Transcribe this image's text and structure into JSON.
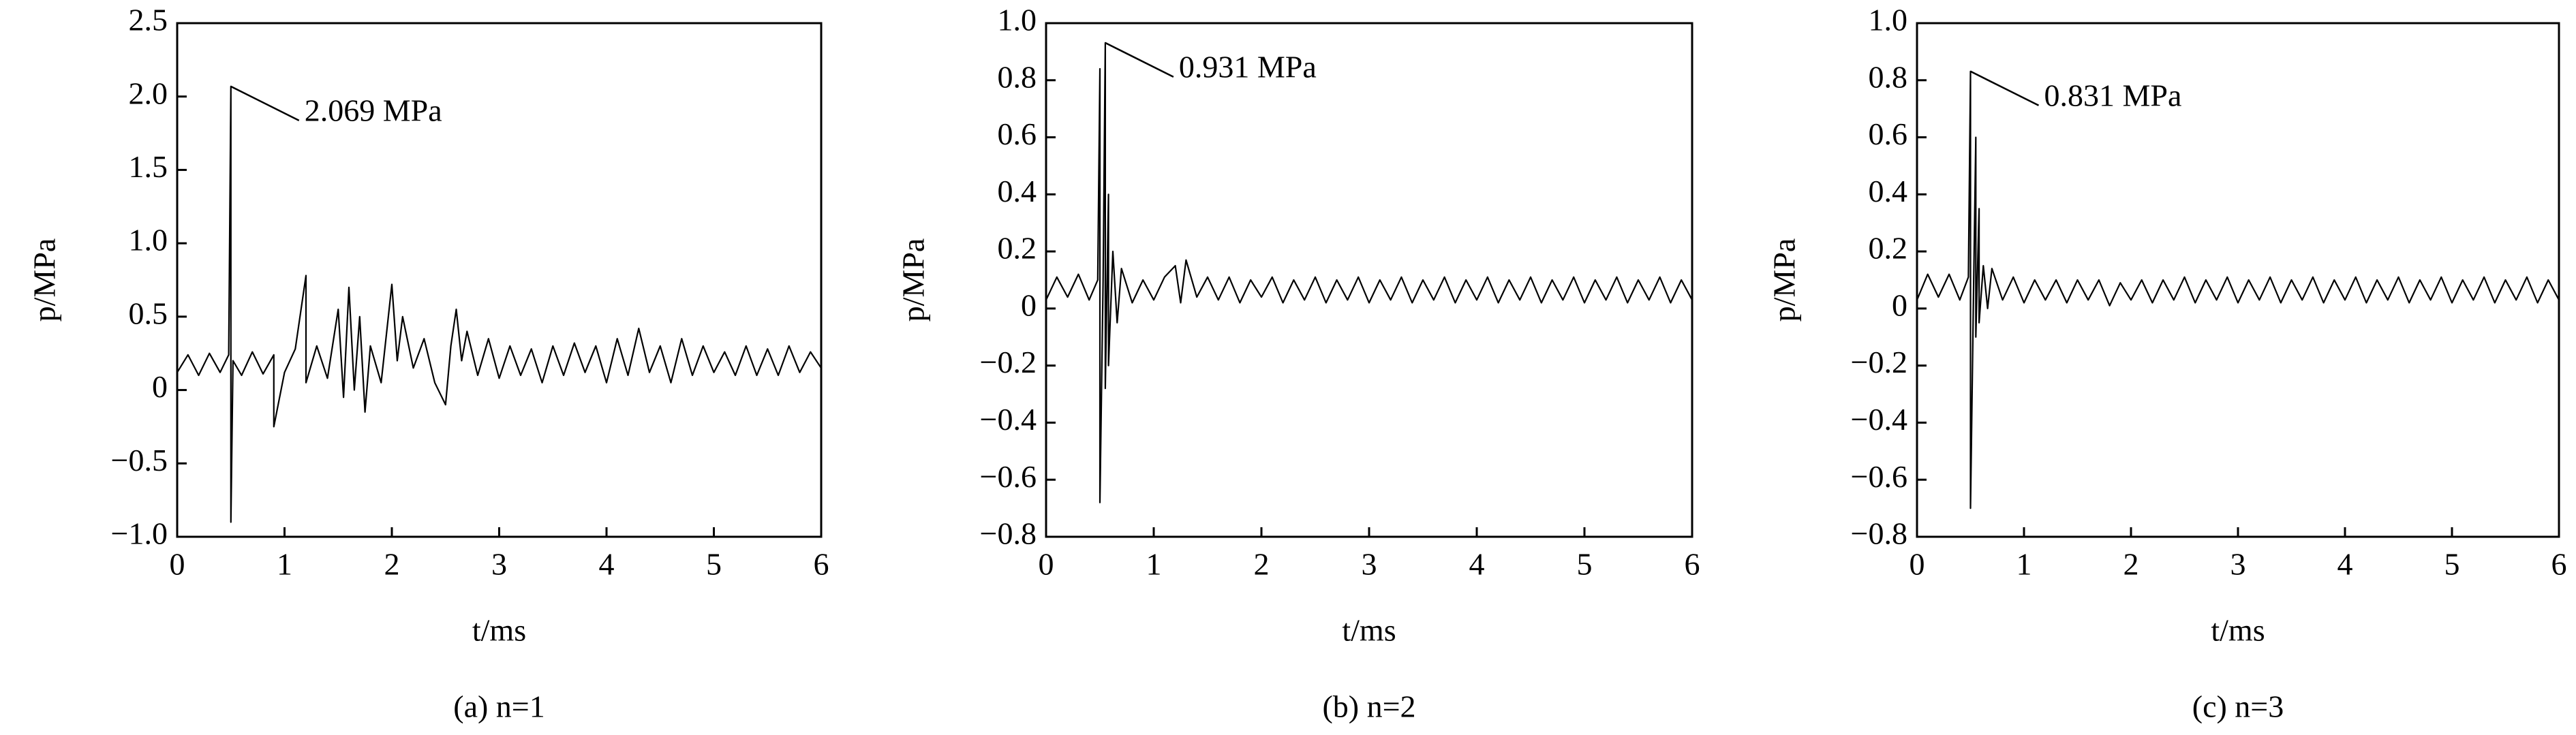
{
  "chart_data": [
    {
      "type": "line",
      "xlabel": "t/ms",
      "ylabel": "p/MPa",
      "caption": "(a) n=1",
      "color": "#000000",
      "xlim": [
        0,
        6
      ],
      "ylim": [
        -1,
        2.5
      ],
      "xticks": [
        0,
        1,
        2,
        3,
        4,
        5,
        6
      ],
      "yticks": [
        {
          "value": -1,
          "label": "−1.0"
        },
        {
          "value": -0.5,
          "label": "−0.5"
        },
        0,
        0.5,
        {
          "value": 1,
          "label": "1.0"
        },
        1.5,
        {
          "value": 2,
          "label": "2.0"
        },
        2.5
      ],
      "annotation": {
        "text": "2.069 MPa",
        "x": 0.5,
        "y": 2.069
      },
      "x": [
        0,
        0.1,
        0.2,
        0.3,
        0.4,
        0.48,
        0.5,
        0.5,
        0.52,
        0.6,
        0.7,
        0.8,
        0.9,
        0.9,
        1.0,
        1.1,
        1.2,
        1.2,
        1.3,
        1.4,
        1.5,
        1.55,
        1.6,
        1.65,
        1.7,
        1.75,
        1.8,
        1.9,
        2.0,
        2.05,
        2.1,
        2.2,
        2.3,
        2.4,
        2.5,
        2.55,
        2.6,
        2.65,
        2.7,
        2.8,
        2.9,
        3.0,
        3.1,
        3.2,
        3.3,
        3.4,
        3.5,
        3.6,
        3.7,
        3.8,
        3.9,
        4.0,
        4.1,
        4.2,
        4.3,
        4.4,
        4.5,
        4.6,
        4.7,
        4.8,
        4.9,
        5.0,
        5.1,
        5.2,
        5.3,
        5.4,
        5.5,
        5.6,
        5.7,
        5.8,
        5.9,
        6.0
      ],
      "values": [
        0.12,
        0.24,
        0.1,
        0.25,
        0.12,
        0.24,
        2.069,
        -0.9,
        0.2,
        0.1,
        0.26,
        0.11,
        0.24,
        -0.25,
        0.12,
        0.28,
        0.78,
        0.05,
        0.3,
        0.08,
        0.55,
        -0.05,
        0.7,
        0.0,
        0.5,
        -0.15,
        0.3,
        0.05,
        0.72,
        0.2,
        0.5,
        0.15,
        0.35,
        0.05,
        -0.1,
        0.3,
        0.55,
        0.2,
        0.4,
        0.1,
        0.35,
        0.08,
        0.3,
        0.1,
        0.28,
        0.05,
        0.3,
        0.1,
        0.32,
        0.12,
        0.3,
        0.05,
        0.35,
        0.1,
        0.42,
        0.12,
        0.3,
        0.05,
        0.35,
        0.1,
        0.3,
        0.12,
        0.26,
        0.1,
        0.3,
        0.1,
        0.28,
        0.1,
        0.3,
        0.12,
        0.26,
        0.15
      ]
    },
    {
      "type": "line",
      "xlabel": "t/ms",
      "ylabel": "p/MPa",
      "caption": "(b) n=2",
      "color": "#000000",
      "xlim": [
        0,
        6
      ],
      "ylim": [
        -0.8,
        1
      ],
      "xticks": [
        0,
        1,
        2,
        3,
        4,
        5,
        6
      ],
      "yticks": [
        {
          "value": -0.8,
          "label": "−0.8"
        },
        {
          "value": -0.6,
          "label": "−0.6"
        },
        {
          "value": -0.4,
          "label": "−0.4"
        },
        {
          "value": -0.2,
          "label": "−0.2"
        },
        0,
        0.2,
        0.4,
        0.6,
        0.8,
        {
          "value": 1,
          "label": "1.0"
        }
      ],
      "annotation": {
        "text": "0.931 MPa",
        "x": 0.55,
        "y": 0.931
      },
      "x": [
        0,
        0.1,
        0.2,
        0.3,
        0.4,
        0.48,
        0.5,
        0.5,
        0.53,
        0.55,
        0.55,
        0.58,
        0.58,
        0.62,
        0.66,
        0.7,
        0.8,
        0.9,
        1.0,
        1.1,
        1.2,
        1.25,
        1.3,
        1.4,
        1.5,
        1.6,
        1.7,
        1.8,
        1.9,
        2.0,
        2.1,
        2.2,
        2.3,
        2.4,
        2.5,
        2.6,
        2.7,
        2.8,
        2.9,
        3.0,
        3.1,
        3.2,
        3.3,
        3.4,
        3.5,
        3.6,
        3.7,
        3.8,
        3.9,
        4.0,
        4.1,
        4.2,
        4.3,
        4.4,
        4.5,
        4.6,
        4.7,
        4.8,
        4.9,
        5.0,
        5.1,
        5.2,
        5.3,
        5.4,
        5.5,
        5.6,
        5.7,
        5.8,
        5.9,
        6.0
      ],
      "values": [
        0.03,
        0.11,
        0.04,
        0.12,
        0.03,
        0.1,
        0.84,
        -0.68,
        0.1,
        0.931,
        -0.28,
        0.4,
        -0.2,
        0.2,
        -0.05,
        0.14,
        0.02,
        0.1,
        0.03,
        0.11,
        0.15,
        0.02,
        0.17,
        0.04,
        0.11,
        0.03,
        0.11,
        0.02,
        0.1,
        0.04,
        0.11,
        0.02,
        0.1,
        0.03,
        0.11,
        0.02,
        0.1,
        0.03,
        0.11,
        0.02,
        0.1,
        0.03,
        0.11,
        0.02,
        0.1,
        0.03,
        0.11,
        0.02,
        0.1,
        0.03,
        0.11,
        0.02,
        0.1,
        0.03,
        0.11,
        0.02,
        0.1,
        0.03,
        0.11,
        0.02,
        0.1,
        0.03,
        0.11,
        0.02,
        0.1,
        0.03,
        0.11,
        0.02,
        0.1,
        0.03
      ]
    },
    {
      "type": "line",
      "xlabel": "t/ms",
      "ylabel": "p/MPa",
      "caption": "(c) n=3",
      "color": "#000000",
      "xlim": [
        0,
        6
      ],
      "ylim": [
        -0.8,
        1
      ],
      "xticks": [
        0,
        1,
        2,
        3,
        4,
        5,
        6
      ],
      "yticks": [
        {
          "value": -0.8,
          "label": "−0.8"
        },
        {
          "value": -0.6,
          "label": "−0.6"
        },
        {
          "value": -0.4,
          "label": "−0.4"
        },
        {
          "value": -0.2,
          "label": "−0.2"
        },
        0,
        0.2,
        0.4,
        0.6,
        0.8,
        {
          "value": 1,
          "label": "1.0"
        }
      ],
      "annotation": {
        "text": "0.831 MPa",
        "x": 0.5,
        "y": 0.831
      },
      "x": [
        0,
        0.1,
        0.2,
        0.3,
        0.4,
        0.48,
        0.5,
        0.5,
        0.53,
        0.55,
        0.55,
        0.58,
        0.58,
        0.62,
        0.66,
        0.7,
        0.8,
        0.9,
        1.0,
        1.1,
        1.2,
        1.3,
        1.4,
        1.5,
        1.6,
        1.7,
        1.8,
        1.9,
        2.0,
        2.1,
        2.2,
        2.3,
        2.4,
        2.5,
        2.6,
        2.7,
        2.8,
        2.9,
        3.0,
        3.1,
        3.2,
        3.3,
        3.4,
        3.5,
        3.6,
        3.7,
        3.8,
        3.9,
        4.0,
        4.1,
        4.2,
        4.3,
        4.4,
        4.5,
        4.6,
        4.7,
        4.8,
        4.9,
        5.0,
        5.1,
        5.2,
        5.3,
        5.4,
        5.5,
        5.6,
        5.7,
        5.8,
        5.9,
        6.0
      ],
      "values": [
        0.03,
        0.12,
        0.04,
        0.12,
        0.03,
        0.11,
        0.831,
        -0.7,
        0.1,
        0.6,
        -0.1,
        0.35,
        -0.05,
        0.15,
        0.0,
        0.14,
        0.03,
        0.11,
        0.02,
        0.1,
        0.03,
        0.1,
        0.02,
        0.1,
        0.03,
        0.1,
        0.01,
        0.09,
        0.03,
        0.1,
        0.02,
        0.1,
        0.03,
        0.11,
        0.02,
        0.1,
        0.03,
        0.11,
        0.02,
        0.1,
        0.03,
        0.11,
        0.02,
        0.1,
        0.03,
        0.11,
        0.02,
        0.1,
        0.03,
        0.11,
        0.02,
        0.1,
        0.03,
        0.11,
        0.02,
        0.1,
        0.03,
        0.11,
        0.02,
        0.1,
        0.03,
        0.11,
        0.02,
        0.1,
        0.03,
        0.11,
        0.02,
        0.1,
        0.03
      ]
    }
  ]
}
